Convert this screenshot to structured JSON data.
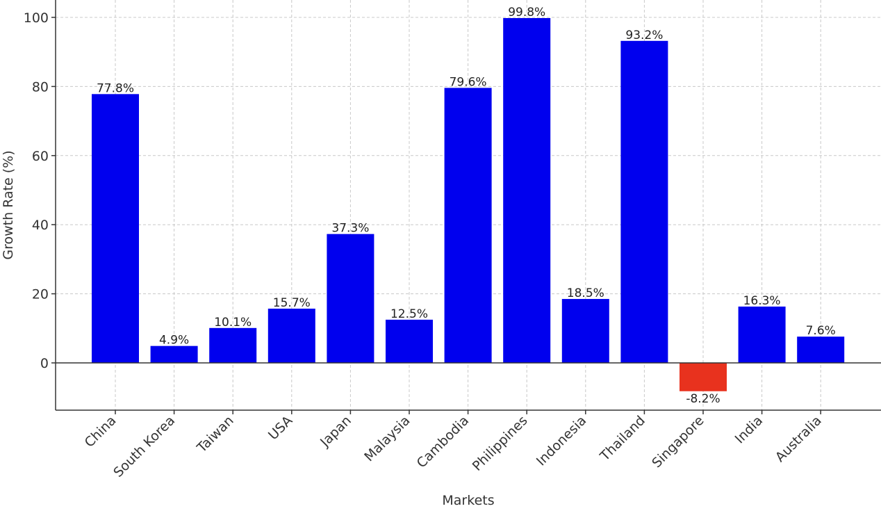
{
  "chart_data": {
    "type": "bar",
    "title": "",
    "xlabel": "Markets",
    "ylabel": "Growth Rate (%)",
    "ylim": [
      -13.5,
      104
    ],
    "yticks": [
      0,
      20,
      40,
      60,
      80,
      100
    ],
    "grid": true,
    "categories": [
      "China",
      "South Korea",
      "Taiwan",
      "USA",
      "Japan",
      "Malaysia",
      "Cambodia",
      "Philippines",
      "Indonesia",
      "Thailand",
      "Singapore",
      "India",
      "Australia"
    ],
    "values": [
      77.8,
      4.9,
      10.1,
      15.7,
      37.3,
      12.5,
      79.6,
      99.8,
      18.5,
      93.2,
      -8.2,
      16.3,
      7.6
    ],
    "value_labels": [
      "77.8%",
      "4.9%",
      "10.1%",
      "15.7%",
      "37.3%",
      "12.5%",
      "79.6%",
      "99.8%",
      "18.5%",
      "93.2%",
      "-8.2%",
      "16.3%",
      "7.6%"
    ],
    "colors": {
      "positive": "#0000ee",
      "negative": "#e8321e",
      "grid": "#c8c8c8",
      "axis": "#333333"
    }
  }
}
